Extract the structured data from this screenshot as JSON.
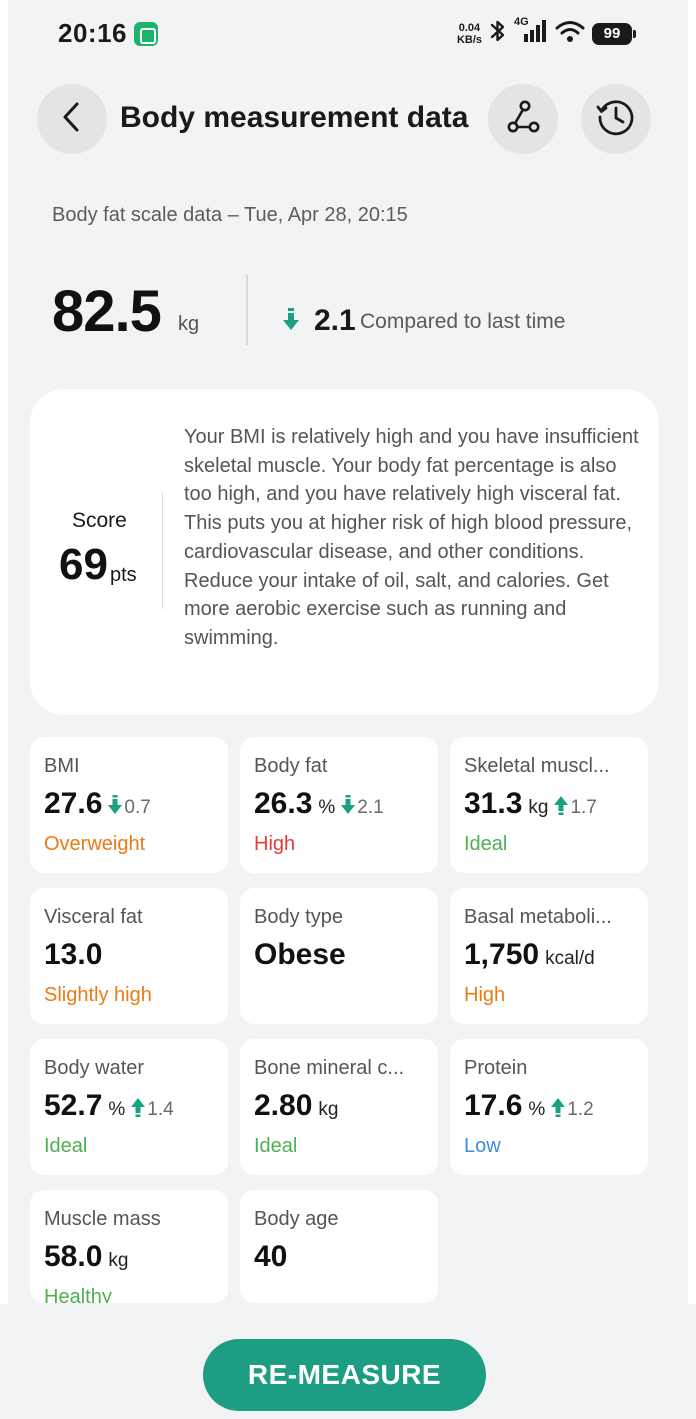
{
  "status_bar": {
    "time": "20:16",
    "net_speed_value": "0.04",
    "net_speed_unit": "KB/s",
    "network_type": "4G",
    "battery": "99"
  },
  "header": {
    "title": "Body measurement data"
  },
  "measurement": {
    "subtitle": "Body fat scale data – Tue, Apr 28, 20:15",
    "weight": "82.5",
    "weight_unit": "kg",
    "delta": "2.1",
    "delta_label": "Compared to last time"
  },
  "score": {
    "label": "Score",
    "value": "69",
    "unit": "pts",
    "description": "Your BMI is relatively high and you have insufficient skeletal muscle. Your body fat percentage is also too high, and you have relatively high visceral fat. This puts you at higher risk of high blood pressure, cardiovascular disease, and other conditions. Reduce your intake of oil, salt, and calories. Get more aerobic exercise such as running and swimming."
  },
  "metrics": [
    {
      "name": "BMI",
      "value": "27.6",
      "unit": "",
      "delta": "0.7",
      "delta_dir": "down",
      "status": "Overweight"
    },
    {
      "name": "Body fat",
      "value": "26.3",
      "unit": "%",
      "delta": "2.1",
      "delta_dir": "down",
      "status": "High"
    },
    {
      "name": "Skeletal muscl...",
      "value": "31.3",
      "unit": "kg",
      "delta": "1.7",
      "delta_dir": "up",
      "status": "Ideal"
    },
    {
      "name": "Visceral fat",
      "value": "13.0",
      "unit": "",
      "delta": "",
      "status": "Slightly high"
    },
    {
      "name": "Body type",
      "value": "Obese",
      "unit": "",
      "delta": "",
      "status": ""
    },
    {
      "name": "Basal metaboli...",
      "value": "1,750",
      "unit": "kcal/d",
      "delta": "",
      "status": "High"
    },
    {
      "name": "Body water",
      "value": "52.7",
      "unit": "%",
      "delta": "1.4",
      "delta_dir": "up",
      "status": "Ideal"
    },
    {
      "name": "Bone mineral c...",
      "value": "2.80",
      "unit": "kg",
      "delta": "",
      "status": "Ideal"
    },
    {
      "name": "Protein",
      "value": "17.6",
      "unit": "%",
      "delta": "1.2",
      "delta_dir": "up",
      "status": "Low"
    },
    {
      "name": "Muscle mass",
      "value": "58.0",
      "unit": "kg",
      "delta": "",
      "status": "Healthy"
    },
    {
      "name": "Body age",
      "value": "40",
      "unit": "",
      "delta": "",
      "status": ""
    }
  ],
  "actions": {
    "remeasure_label": "RE-MEASURE"
  },
  "colors": {
    "accent_green": "#1d9d82",
    "arrow_green": "#1aa083",
    "status_orange": "#ea7a16",
    "status_red": "#e43b3b",
    "status_green": "#4db053",
    "status_blue": "#3f8ae6"
  },
  "icons": {
    "back": "chevron-left-icon",
    "share": "share-nodes-icon",
    "history": "history-clock-icon",
    "delta_down": "arrow-down-icon",
    "delta_up": "arrow-up-icon"
  }
}
